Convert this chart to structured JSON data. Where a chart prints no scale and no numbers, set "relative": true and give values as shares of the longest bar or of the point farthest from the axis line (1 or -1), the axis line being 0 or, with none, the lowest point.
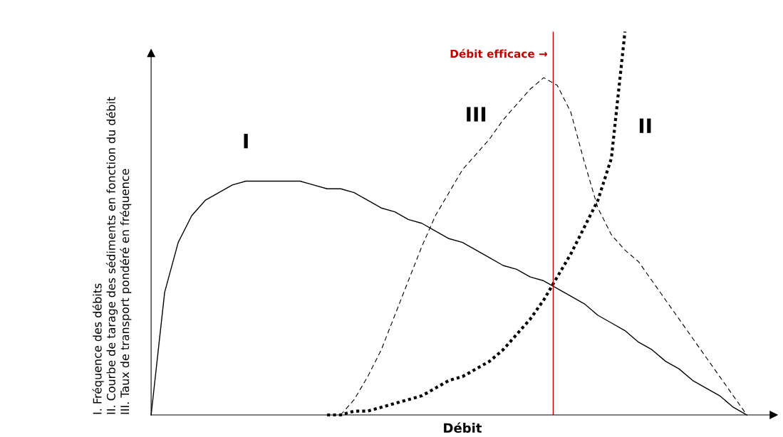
{
  "chart_data": {
    "type": "line",
    "relative": true,
    "xlabel": "Débit",
    "ylabel": "I. Fréquence des débits\nII. Courbe de tarage des sédiments en fonction du débit\nIII. Taux de transport pondéré en fréquence",
    "categories": [
      null,
      null,
      null,
      null,
      null,
      null,
      null,
      null,
      null,
      null,
      null,
      null,
      null,
      null,
      null,
      null,
      null,
      null,
      null,
      null,
      null,
      null,
      null,
      null,
      null,
      null,
      null,
      null,
      null,
      null,
      null,
      null,
      null,
      null,
      null,
      null,
      null,
      null,
      null,
      null,
      null,
      null,
      null,
      null,
      null
    ],
    "series": [
      {
        "name": "I",
        "color": "#000000",
        "line_style": "solid",
        "values": [
          0,
          0.32,
          0.45,
          0.52,
          0.56,
          0.58,
          0.6,
          0.61,
          0.61,
          0.61,
          0.61,
          0.61,
          0.6,
          0.59,
          0.59,
          0.58,
          0.56,
          0.54,
          0.53,
          0.51,
          0.5,
          0.48,
          0.46,
          0.45,
          0.43,
          0.41,
          0.39,
          0.38,
          0.36,
          0.35,
          0.33,
          0.31,
          0.29,
          0.26,
          0.24,
          0.22,
          0.19,
          0.17,
          0.14,
          0.12,
          0.09,
          0.07,
          0.05,
          0.02,
          0
        ]
      },
      {
        "name": "II",
        "color": "#000000",
        "line_style": "dotted",
        "values": [
          null,
          null,
          null,
          null,
          null,
          null,
          null,
          null,
          null,
          null,
          null,
          null,
          null,
          0,
          0,
          0.01,
          0.01,
          0.02,
          0.03,
          0.04,
          0.05,
          0.07,
          0.09,
          0.1,
          0.12,
          0.14,
          0.17,
          0.21,
          0.25,
          0.3,
          0.36,
          0.42,
          0.49,
          0.56,
          0.67,
          1,
          null,
          null,
          null,
          null,
          null,
          null,
          null,
          null,
          null
        ]
      },
      {
        "name": "III",
        "color": "#000000",
        "line_style": "dashed",
        "values": [
          null,
          null,
          null,
          null,
          null,
          null,
          null,
          null,
          null,
          null,
          null,
          null,
          null,
          null,
          0,
          0.04,
          0.1,
          0.17,
          0.26,
          0.35,
          0.44,
          0.52,
          0.58,
          0.64,
          0.68,
          0.72,
          0.77,
          0.81,
          0.85,
          0.88,
          0.86,
          0.79,
          0.66,
          0.54,
          0.47,
          0.43,
          0.4,
          0.35,
          0.3,
          0.25,
          0.2,
          0.15,
          0.1,
          0.05,
          0
        ]
      }
    ],
    "annotations": [
      "Débit efficace →"
    ]
  }
}
